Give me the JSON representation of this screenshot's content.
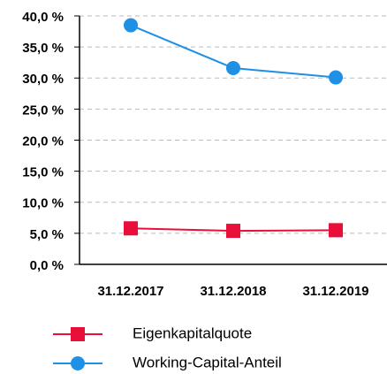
{
  "chart_data": {
    "type": "line",
    "categories": [
      "31.12.2017",
      "31.12.2018",
      "31.12.2019"
    ],
    "series": [
      {
        "name": "Eigenkapitalquote",
        "color": "#e8103a",
        "marker": "square",
        "values": [
          5.8,
          5.4,
          5.5
        ]
      },
      {
        "name": "Working-Capital-Anteil",
        "color": "#1e90e6",
        "marker": "circle",
        "values": [
          38.5,
          31.6,
          30.1
        ]
      }
    ],
    "ylim": [
      0,
      40
    ],
    "yticks": [
      {
        "value": 0,
        "label": "0,0 %"
      },
      {
        "value": 5,
        "label": "5,0 %"
      },
      {
        "value": 10,
        "label": "10,0 %"
      },
      {
        "value": 15,
        "label": "15,0 %"
      },
      {
        "value": 20,
        "label": "20,0 %"
      },
      {
        "value": 25,
        "label": "25,0 %"
      },
      {
        "value": 30,
        "label": "30,0 %"
      },
      {
        "value": 35,
        "label": "35,0 %"
      },
      {
        "value": 40,
        "label": "40,0 %"
      }
    ],
    "grid": true
  }
}
